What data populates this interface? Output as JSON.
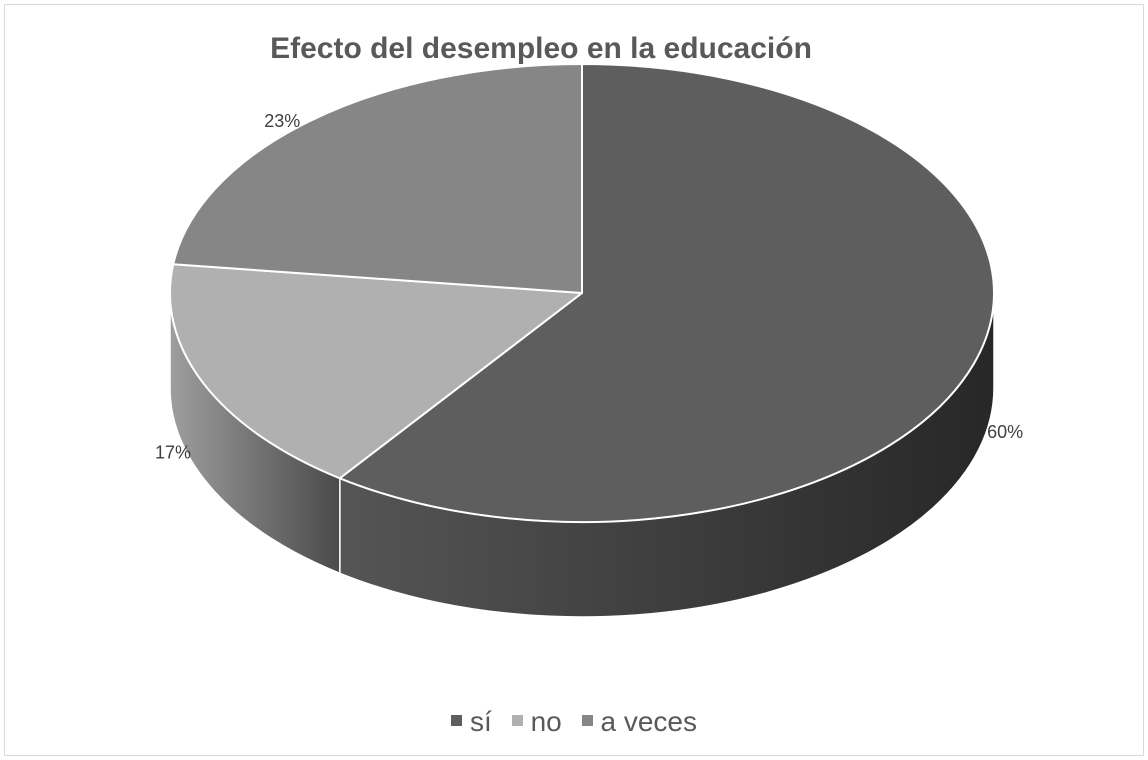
{
  "chart_data": {
    "type": "pie",
    "title": "Efecto del desempleo en la educación",
    "categories": [
      "sí",
      "no",
      "a veces"
    ],
    "values": [
      60,
      17,
      23
    ],
    "labels": [
      "60%",
      "17%",
      "23%"
    ],
    "colors": [
      "#5e5e5e",
      "#b0b0b0",
      "#868686"
    ],
    "legend_position": "bottom",
    "three_d": true
  }
}
